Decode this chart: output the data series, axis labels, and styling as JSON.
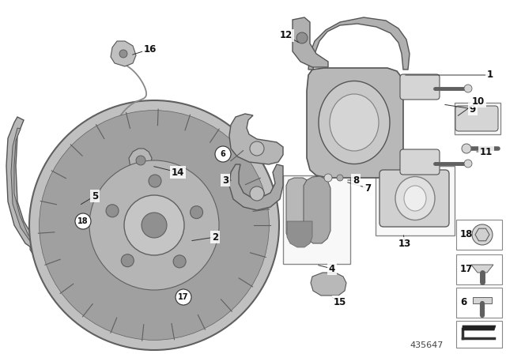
{
  "bg_color": "#ffffff",
  "part_number": "435647",
  "label_font_size": 8
}
